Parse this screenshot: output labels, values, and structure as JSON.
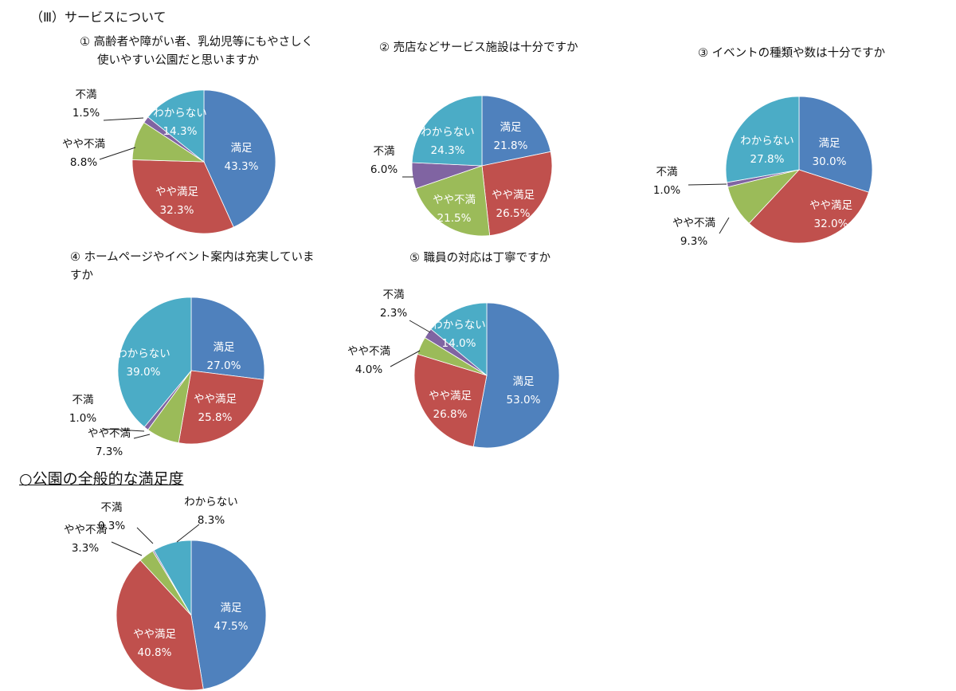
{
  "section_title": "（Ⅲ）サービスについて",
  "overall_title": "○公園の全般的な満足度",
  "colors": {
    "満足": "#4f81bd",
    "やや満足": "#c0504d",
    "やや不満": "#9bbb59",
    "不満": "#8064a2",
    "わからない": "#4bacc6"
  },
  "chart_data": [
    {
      "type": "pie",
      "title_lines": [
        "① 高齢者や障がい者、乳幼児等にもやさしく",
        "使いやすい公園だと思いますか"
      ],
      "categories": [
        "満足",
        "やや満足",
        "やや不満",
        "不満",
        "わからない"
      ],
      "values": [
        43.3,
        32.3,
        8.8,
        1.5,
        14.3
      ],
      "labels": [
        "43.3%",
        "32.3%",
        "8.8%",
        "1.5%",
        "14.3%"
      ]
    },
    {
      "type": "pie",
      "title_lines": [
        "② 売店などサービス施設は十分ですか"
      ],
      "categories": [
        "満足",
        "やや満足",
        "やや不満",
        "不満",
        "わからない"
      ],
      "values": [
        21.8,
        26.5,
        21.5,
        6.0,
        24.3
      ],
      "labels": [
        "21.8%",
        "26.5%",
        "21.5%",
        "6.0%",
        "24.3%"
      ]
    },
    {
      "type": "pie",
      "title_lines": [
        "③ イベントの種類や数は十分ですか"
      ],
      "categories": [
        "満足",
        "やや満足",
        "やや不満",
        "不満",
        "わからない"
      ],
      "values": [
        30.0,
        32.0,
        9.3,
        1.0,
        27.8
      ],
      "labels": [
        "30.0%",
        "32.0%",
        "9.3%",
        "1.0%",
        "27.8%"
      ]
    },
    {
      "type": "pie",
      "title_lines": [
        "④ ホームページやイベント案内は充実していま",
        "すか"
      ],
      "categories": [
        "満足",
        "やや満足",
        "やや不満",
        "不満",
        "わからない"
      ],
      "values": [
        27.0,
        25.8,
        7.3,
        1.0,
        39.0
      ],
      "labels": [
        "27.0%",
        "25.8%",
        "7.3%",
        "1.0%",
        "39.0%"
      ]
    },
    {
      "type": "pie",
      "title_lines": [
        "⑤ 職員の対応は丁寧ですか"
      ],
      "categories": [
        "満足",
        "やや満足",
        "やや不満",
        "不満",
        "わからない"
      ],
      "values": [
        53.0,
        26.8,
        4.0,
        2.3,
        14.0
      ],
      "labels": [
        "53.0%",
        "26.8%",
        "4.0%",
        "2.3%",
        "14.0%"
      ]
    },
    {
      "type": "pie",
      "title_lines": [],
      "categories": [
        "満足",
        "やや満足",
        "やや不満",
        "不満",
        "わからない"
      ],
      "values": [
        47.5,
        40.8,
        3.3,
        0.3,
        8.3
      ],
      "labels": [
        "47.5%",
        "40.8%",
        "3.3%",
        "0.3%",
        "8.3%"
      ]
    }
  ]
}
